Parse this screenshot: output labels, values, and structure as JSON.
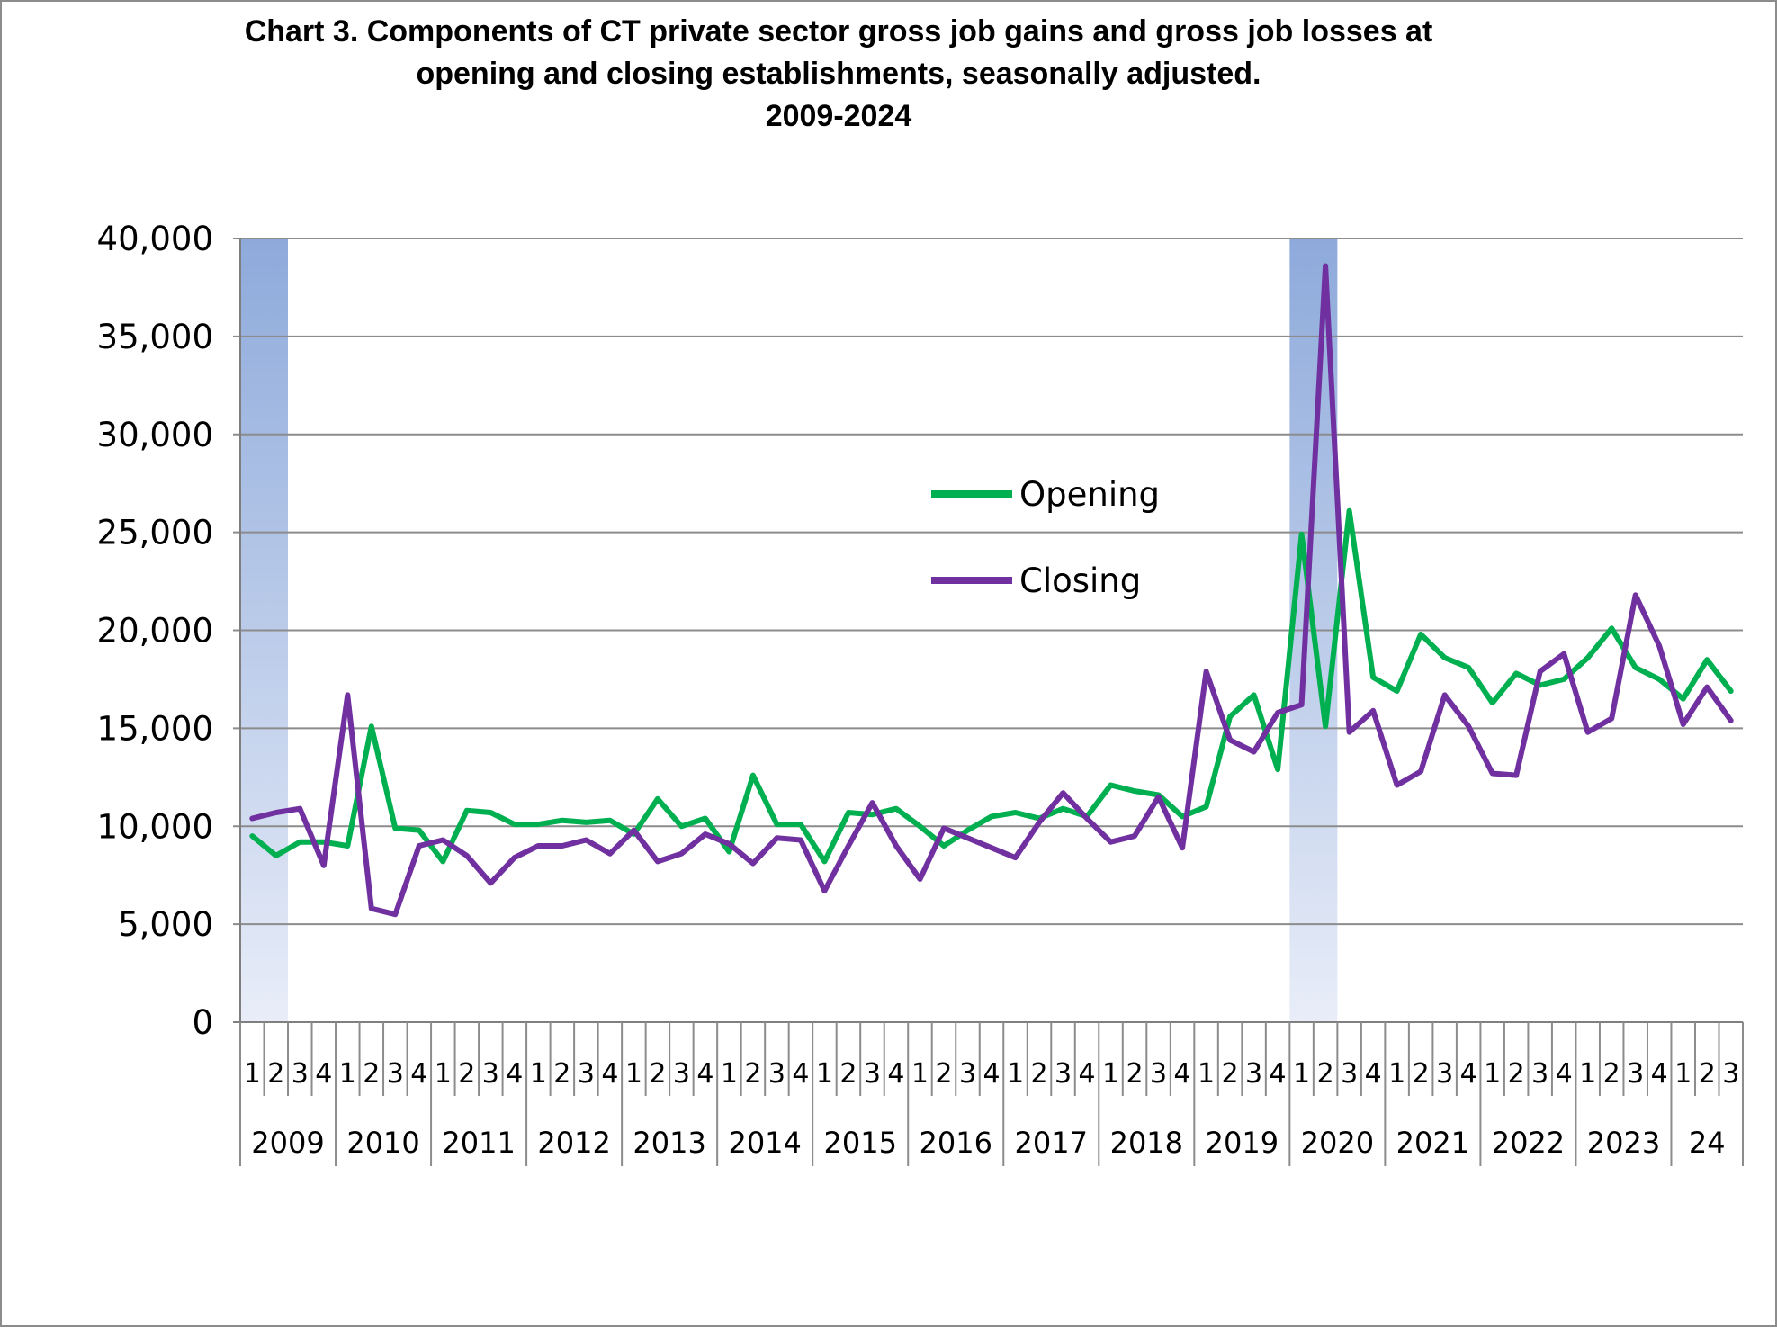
{
  "chart_data": {
    "type": "line",
    "title": {
      "line1": "Chart 3. Components of CT private sector gross job gains and gross  job losses at",
      "line2": "opening and closing establishments, seasonally adjusted.",
      "line3": "2009-2024"
    },
    "xlabel": "",
    "ylabel": "",
    "ylim": [
      0,
      40000
    ],
    "yticks": [
      "0",
      "5,000",
      "10,000",
      "15,000",
      "20,000",
      "25,000",
      "30,000",
      "35,000",
      "40,000"
    ],
    "quarter_labels": [
      "1",
      "2",
      "3",
      "4",
      "1",
      "2",
      "3",
      "4",
      "1",
      "2",
      "3",
      "4",
      "1",
      "2",
      "3",
      "4",
      "1",
      "2",
      "3",
      "4",
      "1",
      "2",
      "3",
      "4",
      "1",
      "2",
      "3",
      "4",
      "1",
      "2",
      "3",
      "4",
      "1",
      "2",
      "3",
      "4",
      "1",
      "2",
      "3",
      "4",
      "1",
      "2",
      "3",
      "4",
      "1",
      "2",
      "3",
      "4",
      "1",
      "2",
      "3",
      "4",
      "1",
      "2",
      "3",
      "4",
      "1",
      "2",
      "3",
      "4",
      "1",
      "2",
      "3"
    ],
    "year_labels": [
      "2009",
      "2010",
      "2011",
      "2012",
      "2013",
      "2014",
      "2015",
      "2016",
      "2017",
      "2018",
      "2019",
      "2020",
      "2021",
      "2022",
      "2023",
      "24"
    ],
    "grid": true,
    "recession_shading": [
      {
        "label": "2009 recession",
        "start_quarter": 1,
        "end_quarter": 2
      },
      {
        "label": "2020 recession",
        "start_quarter": 45,
        "end_quarter": 46
      }
    ],
    "legend": {
      "position": "center-right",
      "entries": [
        "Opening",
        "Closing"
      ]
    },
    "series": [
      {
        "name": "Opening",
        "color": "#00b050",
        "values": [
          9500,
          8500,
          9200,
          9200,
          9000,
          15100,
          9900,
          9800,
          8200,
          10800,
          10700,
          10100,
          10100,
          10300,
          10200,
          10300,
          9600,
          11400,
          10000,
          10400,
          8700,
          12600,
          10100,
          10100,
          8200,
          10700,
          10600,
          10900,
          10000,
          9000,
          9800,
          10500,
          10700,
          10400,
          10900,
          10500,
          12100,
          11800,
          11600,
          10500,
          11000,
          15600,
          16700,
          12900,
          24900,
          15100,
          26100,
          17600,
          16900,
          19800,
          18600,
          18100,
          16300,
          17800,
          17200,
          17500,
          18600,
          20100,
          18100,
          17500,
          16500,
          18500,
          16900
        ]
      },
      {
        "name": "Closing",
        "color": "#7030a0",
        "values": [
          10400,
          10700,
          10900,
          8000,
          16700,
          5800,
          5500,
          9000,
          9300,
          8500,
          7100,
          8400,
          9000,
          9000,
          9300,
          8600,
          9800,
          8200,
          8600,
          9600,
          9100,
          8100,
          9400,
          9300,
          6700,
          9000,
          11200,
          9000,
          7300,
          9900,
          9400,
          8900,
          8400,
          10200,
          11700,
          10400,
          9200,
          9500,
          11500,
          8900,
          17900,
          14400,
          13800,
          15800,
          16200,
          38600,
          14800,
          15900,
          12100,
          12800,
          16700,
          15100,
          12700,
          12600,
          17900,
          18800,
          14800,
          15500,
          21800,
          19200,
          15200,
          17100,
          15400
        ]
      }
    ]
  }
}
